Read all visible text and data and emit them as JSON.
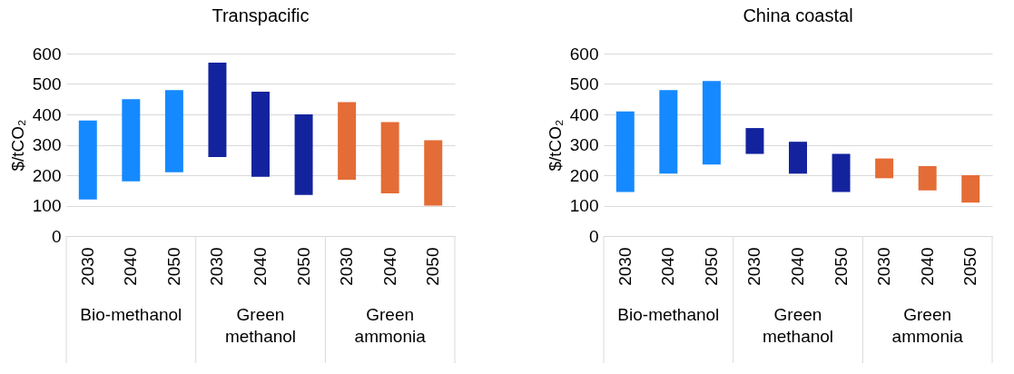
{
  "chart_data": [
    {
      "type": "bar",
      "title": "Transpacific",
      "ylabel": "$/tCO₂",
      "categories": [
        "2030",
        "2040",
        "2050",
        "2030",
        "2040",
        "2050",
        "2030",
        "2040",
        "2050"
      ],
      "base": [
        120,
        180,
        210,
        260,
        195,
        135,
        185,
        140,
        100
      ],
      "values": [
        260,
        270,
        270,
        310,
        280,
        265,
        255,
        235,
        215
      ],
      "colors": [
        "#1589ff",
        "#1589ff",
        "#1589ff",
        "#13239e",
        "#13239e",
        "#13239e",
        "#e46c36",
        "#e46c36",
        "#e46c36"
      ],
      "ylim": [
        0,
        600
      ],
      "yticks": [
        0,
        100,
        200,
        300,
        400,
        500,
        600
      ],
      "grid": "y",
      "annotations": [
        "Bio-methanol",
        "Green methanol",
        "Green ammonia"
      ]
    },
    {
      "type": "bar",
      "title": "China coastal",
      "ylabel": "$/tCO₂",
      "categories": [
        "2030",
        "2040",
        "2050",
        "2030",
        "2040",
        "2050",
        "2030",
        "2040",
        "2050"
      ],
      "base": [
        145,
        205,
        235,
        270,
        205,
        145,
        190,
        150,
        110
      ],
      "values": [
        265,
        275,
        275,
        85,
        105,
        125,
        65,
        80,
        90
      ],
      "colors": [
        "#1589ff",
        "#1589ff",
        "#1589ff",
        "#13239e",
        "#13239e",
        "#13239e",
        "#e46c36",
        "#e46c36",
        "#e46c36"
      ],
      "ylim": [
        0,
        600
      ],
      "yticks": [
        0,
        100,
        200,
        300,
        400,
        500,
        600
      ],
      "grid": "y",
      "annotations": [
        "Bio-methanol",
        "Green methanol",
        "Green ammonia"
      ]
    }
  ]
}
